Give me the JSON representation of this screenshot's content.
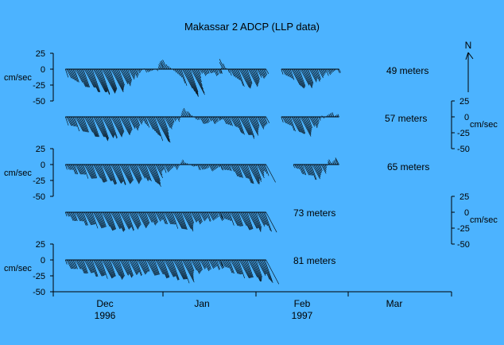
{
  "chart_data": {
    "type": "stick",
    "title": "Makassar 2 ADCP (LLP data)",
    "time_axis": {
      "months": [
        {
          "label": "Dec",
          "year": "1996"
        },
        {
          "label": "Jan",
          "year": ""
        },
        {
          "label": "Feb",
          "year": "1997"
        },
        {
          "label": "Mar",
          "year": ""
        }
      ],
      "start": "1996-11-20",
      "end": "1997-03-31"
    },
    "north_label": "N",
    "unit": "cm/sec",
    "left_axis_ticks": [
      "25",
      "0",
      "-25",
      "-50"
    ],
    "right_axis_ticks": [
      "25",
      "0",
      "-25",
      "-50"
    ],
    "series": [
      {
        "name": "49 meters",
        "segments": [
          {
            "start": "1996-11-24",
            "end": "1997-01-14",
            "profile": [
              [
                0,
                -10
              ],
              [
                0.05,
                -22
              ],
              [
                0.12,
                -30
              ],
              [
                0.2,
                -38
              ],
              [
                0.28,
                -35
              ],
              [
                0.36,
                -25
              ],
              [
                0.42,
                -15
              ],
              [
                0.47,
                -5
              ],
              [
                0.5,
                -2
              ],
              [
                0.58,
                -3
              ],
              [
                0.62,
                10
              ],
              [
                0.66,
                12
              ],
              [
                0.7,
                -4
              ],
              [
                0.74,
                -20
              ],
              [
                0.78,
                -45
              ],
              [
                0.82,
                -35
              ],
              [
                0.86,
                -10
              ],
              [
                0.9,
                -6
              ],
              [
                0.95,
                -8
              ],
              [
                1,
                -6
              ]
            ]
          },
          {
            "start": "1997-01-14",
            "end": "1997-01-29",
            "profile": [
              [
                0,
                -8
              ],
              [
                0.06,
                10
              ],
              [
                0.1,
                15
              ],
              [
                0.18,
                -8
              ],
              [
                0.3,
                -18
              ],
              [
                0.45,
                -30
              ],
              [
                0.6,
                -25
              ],
              [
                0.75,
                -20
              ],
              [
                0.85,
                -12
              ],
              [
                0.95,
                -10
              ],
              [
                1,
                -8
              ]
            ]
          },
          {
            "start": "1997-02-03",
            "end": "1997-02-22",
            "profile": [
              [
                0,
                -6
              ],
              [
                0.1,
                -14
              ],
              [
                0.25,
                -30
              ],
              [
                0.4,
                -26
              ],
              [
                0.55,
                -18
              ],
              [
                0.7,
                -10
              ],
              [
                0.85,
                -5
              ],
              [
                1,
                -3
              ]
            ]
          }
        ]
      },
      {
        "name": "57 meters",
        "segments": [
          {
            "start": "1996-11-24",
            "end": "1997-01-14",
            "profile": [
              [
                0,
                -12
              ],
              [
                0.1,
                -25
              ],
              [
                0.2,
                -35
              ],
              [
                0.3,
                -30
              ],
              [
                0.4,
                -22
              ],
              [
                0.5,
                -8
              ],
              [
                0.55,
                -30
              ],
              [
                0.6,
                -40
              ],
              [
                0.65,
                -15
              ],
              [
                0.72,
                -5
              ],
              [
                0.78,
                10
              ],
              [
                0.8,
                12
              ],
              [
                0.84,
                -6
              ],
              [
                0.9,
                -10
              ],
              [
                0.95,
                -8
              ],
              [
                1,
                -6
              ]
            ]
          },
          {
            "start": "1997-01-14",
            "end": "1997-01-29",
            "profile": [
              [
                0,
                -6
              ],
              [
                0.1,
                -10
              ],
              [
                0.25,
                -18
              ],
              [
                0.4,
                -28
              ],
              [
                0.55,
                -32
              ],
              [
                0.7,
                -22
              ],
              [
                0.85,
                -14
              ],
              [
                1,
                -12
              ]
            ]
          },
          {
            "start": "1997-02-03",
            "end": "1997-02-22",
            "profile": [
              [
                0,
                -8
              ],
              [
                0.15,
                -20
              ],
              [
                0.3,
                -30
              ],
              [
                0.45,
                -20
              ],
              [
                0.6,
                -10
              ],
              [
                0.75,
                2
              ],
              [
                0.9,
                4
              ],
              [
                1,
                5
              ]
            ]
          }
        ]
      },
      {
        "name": "65 meters",
        "segments": [
          {
            "start": "1996-11-24",
            "end": "1997-01-14",
            "profile": [
              [
                0,
                -8
              ],
              [
                0.1,
                -18
              ],
              [
                0.2,
                -26
              ],
              [
                0.3,
                -30
              ],
              [
                0.4,
                -28
              ],
              [
                0.5,
                -22
              ],
              [
                0.55,
                -35
              ],
              [
                0.6,
                -12
              ],
              [
                0.7,
                -6
              ],
              [
                0.78,
                6
              ],
              [
                0.82,
                -4
              ],
              [
                0.9,
                -8
              ],
              [
                1,
                -6
              ]
            ]
          },
          {
            "start": "1997-01-14",
            "end": "1997-01-29",
            "profile": [
              [
                0,
                -5
              ],
              [
                0.15,
                -10
              ],
              [
                0.3,
                -18
              ],
              [
                0.5,
                -26
              ],
              [
                0.65,
                -32
              ],
              [
                0.8,
                -20
              ],
              [
                0.9,
                -10
              ],
              [
                1,
                -25
              ]
            ]
          },
          {
            "start": "1997-02-07",
            "end": "1997-02-22",
            "profile": [
              [
                0,
                -6
              ],
              [
                0.2,
                -16
              ],
              [
                0.4,
                -22
              ],
              [
                0.6,
                -12
              ],
              [
                0.8,
                4
              ],
              [
                1,
                10
              ]
            ]
          }
        ]
      },
      {
        "name": "73 meters",
        "segments": [
          {
            "start": "1996-11-24",
            "end": "1997-01-14",
            "profile": [
              [
                0,
                -8
              ],
              [
                0.1,
                -18
              ],
              [
                0.2,
                -24
              ],
              [
                0.3,
                -28
              ],
              [
                0.4,
                -26
              ],
              [
                0.5,
                -20
              ],
              [
                0.6,
                -14
              ],
              [
                0.7,
                -24
              ],
              [
                0.75,
                -30
              ],
              [
                0.8,
                -18
              ],
              [
                0.9,
                -12
              ],
              [
                1,
                -10
              ]
            ]
          },
          {
            "start": "1997-01-14",
            "end": "1997-01-29",
            "profile": [
              [
                0,
                -8
              ],
              [
                0.15,
                -16
              ],
              [
                0.3,
                -22
              ],
              [
                0.5,
                -26
              ],
              [
                0.7,
                -28
              ],
              [
                0.85,
                -20
              ],
              [
                1,
                -30
              ]
            ]
          }
        ]
      },
      {
        "name": "81 meters",
        "segments": [
          {
            "start": "1996-11-24",
            "end": "1997-01-14",
            "profile": [
              [
                0,
                -10
              ],
              [
                0.1,
                -20
              ],
              [
                0.2,
                -26
              ],
              [
                0.3,
                -28
              ],
              [
                0.4,
                -24
              ],
              [
                0.5,
                -20
              ],
              [
                0.6,
                -26
              ],
              [
                0.7,
                -30
              ],
              [
                0.75,
                -34
              ],
              [
                0.8,
                -20
              ],
              [
                0.9,
                -14
              ],
              [
                1,
                -12
              ]
            ]
          },
          {
            "start": "1997-01-14",
            "end": "1997-01-29",
            "profile": [
              [
                0,
                -10
              ],
              [
                0.15,
                -18
              ],
              [
                0.3,
                -24
              ],
              [
                0.5,
                -28
              ],
              [
                0.7,
                -32
              ],
              [
                0.85,
                -24
              ],
              [
                1,
                -38
              ]
            ]
          }
        ]
      }
    ]
  }
}
